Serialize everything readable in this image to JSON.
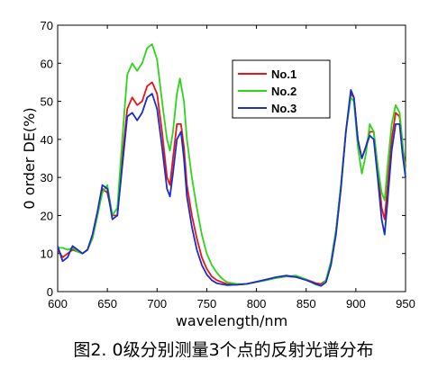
{
  "chart_data": {
    "type": "line",
    "xlabel": "wavelength/nm",
    "ylabel": "0 order DE(%)",
    "xlim": [
      600,
      950
    ],
    "ylim": [
      0,
      70
    ],
    "x_ticks": [
      600,
      650,
      700,
      750,
      800,
      850,
      900,
      950
    ],
    "y_ticks": [
      0,
      10,
      20,
      30,
      40,
      50,
      60,
      70
    ],
    "grid": false,
    "legend_position": "upper-right",
    "series": [
      {
        "name": "No.1",
        "color": "#e8141a",
        "points": [
          [
            600,
            11
          ],
          [
            605,
            9
          ],
          [
            610,
            10
          ],
          [
            615,
            11
          ],
          [
            620,
            10.5
          ],
          [
            625,
            10
          ],
          [
            630,
            11
          ],
          [
            635,
            14
          ],
          [
            640,
            20
          ],
          [
            645,
            27
          ],
          [
            650,
            26
          ],
          [
            655,
            20
          ],
          [
            660,
            20
          ],
          [
            665,
            35
          ],
          [
            670,
            48
          ],
          [
            675,
            51
          ],
          [
            680,
            49
          ],
          [
            685,
            50
          ],
          [
            690,
            54
          ],
          [
            695,
            55
          ],
          [
            700,
            52
          ],
          [
            705,
            42
          ],
          [
            710,
            30
          ],
          [
            713,
            28
          ],
          [
            716,
            35
          ],
          [
            720,
            44
          ],
          [
            724,
            44
          ],
          [
            727,
            38
          ],
          [
            730,
            28
          ],
          [
            735,
            20
          ],
          [
            740,
            14
          ],
          [
            745,
            9
          ],
          [
            750,
            6
          ],
          [
            755,
            4
          ],
          [
            760,
            3
          ],
          [
            770,
            2
          ],
          [
            780,
            1.8
          ],
          [
            790,
            2
          ],
          [
            800,
            2.5
          ],
          [
            810,
            3
          ],
          [
            820,
            3.6
          ],
          [
            830,
            4
          ],
          [
            840,
            3.8
          ],
          [
            850,
            3.2
          ],
          [
            860,
            2.2
          ],
          [
            865,
            2
          ],
          [
            870,
            3
          ],
          [
            875,
            8
          ],
          [
            880,
            16
          ],
          [
            885,
            28
          ],
          [
            890,
            42
          ],
          [
            895,
            52
          ],
          [
            898,
            51
          ],
          [
            902,
            40
          ],
          [
            906,
            35
          ],
          [
            910,
            38
          ],
          [
            914,
            42
          ],
          [
            918,
            42
          ],
          [
            922,
            33
          ],
          [
            926,
            22
          ],
          [
            929,
            19
          ],
          [
            932,
            28
          ],
          [
            936,
            40
          ],
          [
            940,
            47
          ],
          [
            944,
            46
          ],
          [
            947,
            38
          ],
          [
            950,
            33
          ]
        ]
      },
      {
        "name": "No.2",
        "color": "#2ed41a",
        "points": [
          [
            600,
            11.5
          ],
          [
            605,
            11.5
          ],
          [
            610,
            11
          ],
          [
            615,
            11.5
          ],
          [
            620,
            10.5
          ],
          [
            625,
            10
          ],
          [
            630,
            11
          ],
          [
            635,
            14
          ],
          [
            640,
            20
          ],
          [
            645,
            26
          ],
          [
            650,
            28
          ],
          [
            655,
            20
          ],
          [
            660,
            22
          ],
          [
            665,
            40
          ],
          [
            670,
            57
          ],
          [
            675,
            60
          ],
          [
            680,
            58
          ],
          [
            685,
            60
          ],
          [
            690,
            64
          ],
          [
            695,
            65
          ],
          [
            700,
            61
          ],
          [
            705,
            50
          ],
          [
            710,
            40
          ],
          [
            713,
            37
          ],
          [
            716,
            42
          ],
          [
            720,
            52
          ],
          [
            723,
            56
          ],
          [
            727,
            50
          ],
          [
            730,
            40
          ],
          [
            735,
            30
          ],
          [
            740,
            22
          ],
          [
            745,
            15
          ],
          [
            750,
            10
          ],
          [
            755,
            7
          ],
          [
            760,
            5
          ],
          [
            765,
            3.5
          ],
          [
            770,
            2.5
          ],
          [
            780,
            2
          ],
          [
            790,
            2
          ],
          [
            800,
            2.5
          ],
          [
            810,
            3
          ],
          [
            820,
            3.6
          ],
          [
            830,
            4
          ],
          [
            840,
            4.2
          ],
          [
            850,
            3.2
          ],
          [
            860,
            1.8
          ],
          [
            865,
            1.5
          ],
          [
            870,
            3
          ],
          [
            875,
            8
          ],
          [
            880,
            16
          ],
          [
            885,
            28
          ],
          [
            890,
            42
          ],
          [
            895,
            51
          ],
          [
            898,
            50
          ],
          [
            902,
            38
          ],
          [
            906,
            31
          ],
          [
            910,
            36
          ],
          [
            914,
            44
          ],
          [
            918,
            42
          ],
          [
            922,
            33
          ],
          [
            926,
            26
          ],
          [
            929,
            24
          ],
          [
            932,
            33
          ],
          [
            936,
            44
          ],
          [
            940,
            49
          ],
          [
            944,
            47
          ],
          [
            947,
            39
          ],
          [
            950,
            31
          ]
        ]
      },
      {
        "name": "No.3",
        "color": "#1a2ec8",
        "points": [
          [
            600,
            12
          ],
          [
            605,
            8
          ],
          [
            610,
            9
          ],
          [
            615,
            12
          ],
          [
            620,
            11
          ],
          [
            625,
            10
          ],
          [
            630,
            11
          ],
          [
            635,
            15
          ],
          [
            640,
            21
          ],
          [
            645,
            28
          ],
          [
            650,
            27
          ],
          [
            655,
            19
          ],
          [
            660,
            20
          ],
          [
            665,
            33
          ],
          [
            670,
            46
          ],
          [
            675,
            47
          ],
          [
            680,
            45
          ],
          [
            685,
            47
          ],
          [
            690,
            51
          ],
          [
            695,
            52
          ],
          [
            700,
            48
          ],
          [
            705,
            38
          ],
          [
            710,
            27
          ],
          [
            713,
            25
          ],
          [
            716,
            31
          ],
          [
            720,
            40
          ],
          [
            724,
            42
          ],
          [
            727,
            35
          ],
          [
            730,
            25
          ],
          [
            735,
            17
          ],
          [
            740,
            11
          ],
          [
            745,
            7
          ],
          [
            750,
            4.5
          ],
          [
            755,
            3
          ],
          [
            760,
            2.2
          ],
          [
            770,
            1.7
          ],
          [
            780,
            1.8
          ],
          [
            790,
            2
          ],
          [
            800,
            2.6
          ],
          [
            810,
            3.2
          ],
          [
            820,
            3.8
          ],
          [
            830,
            4.2
          ],
          [
            840,
            3.8
          ],
          [
            850,
            3
          ],
          [
            860,
            2
          ],
          [
            865,
            1.5
          ],
          [
            870,
            2.5
          ],
          [
            875,
            7
          ],
          [
            880,
            15
          ],
          [
            885,
            27
          ],
          [
            890,
            42
          ],
          [
            895,
            53
          ],
          [
            898,
            51
          ],
          [
            902,
            40
          ],
          [
            906,
            35
          ],
          [
            910,
            38
          ],
          [
            914,
            41
          ],
          [
            918,
            40
          ],
          [
            922,
            30
          ],
          [
            926,
            19
          ],
          [
            929,
            15
          ],
          [
            932,
            24
          ],
          [
            936,
            37
          ],
          [
            940,
            44
          ],
          [
            944,
            44
          ],
          [
            947,
            36
          ],
          [
            950,
            30
          ]
        ]
      }
    ]
  },
  "caption": "图2. 0级分别测量3个点的反射光谱分布"
}
